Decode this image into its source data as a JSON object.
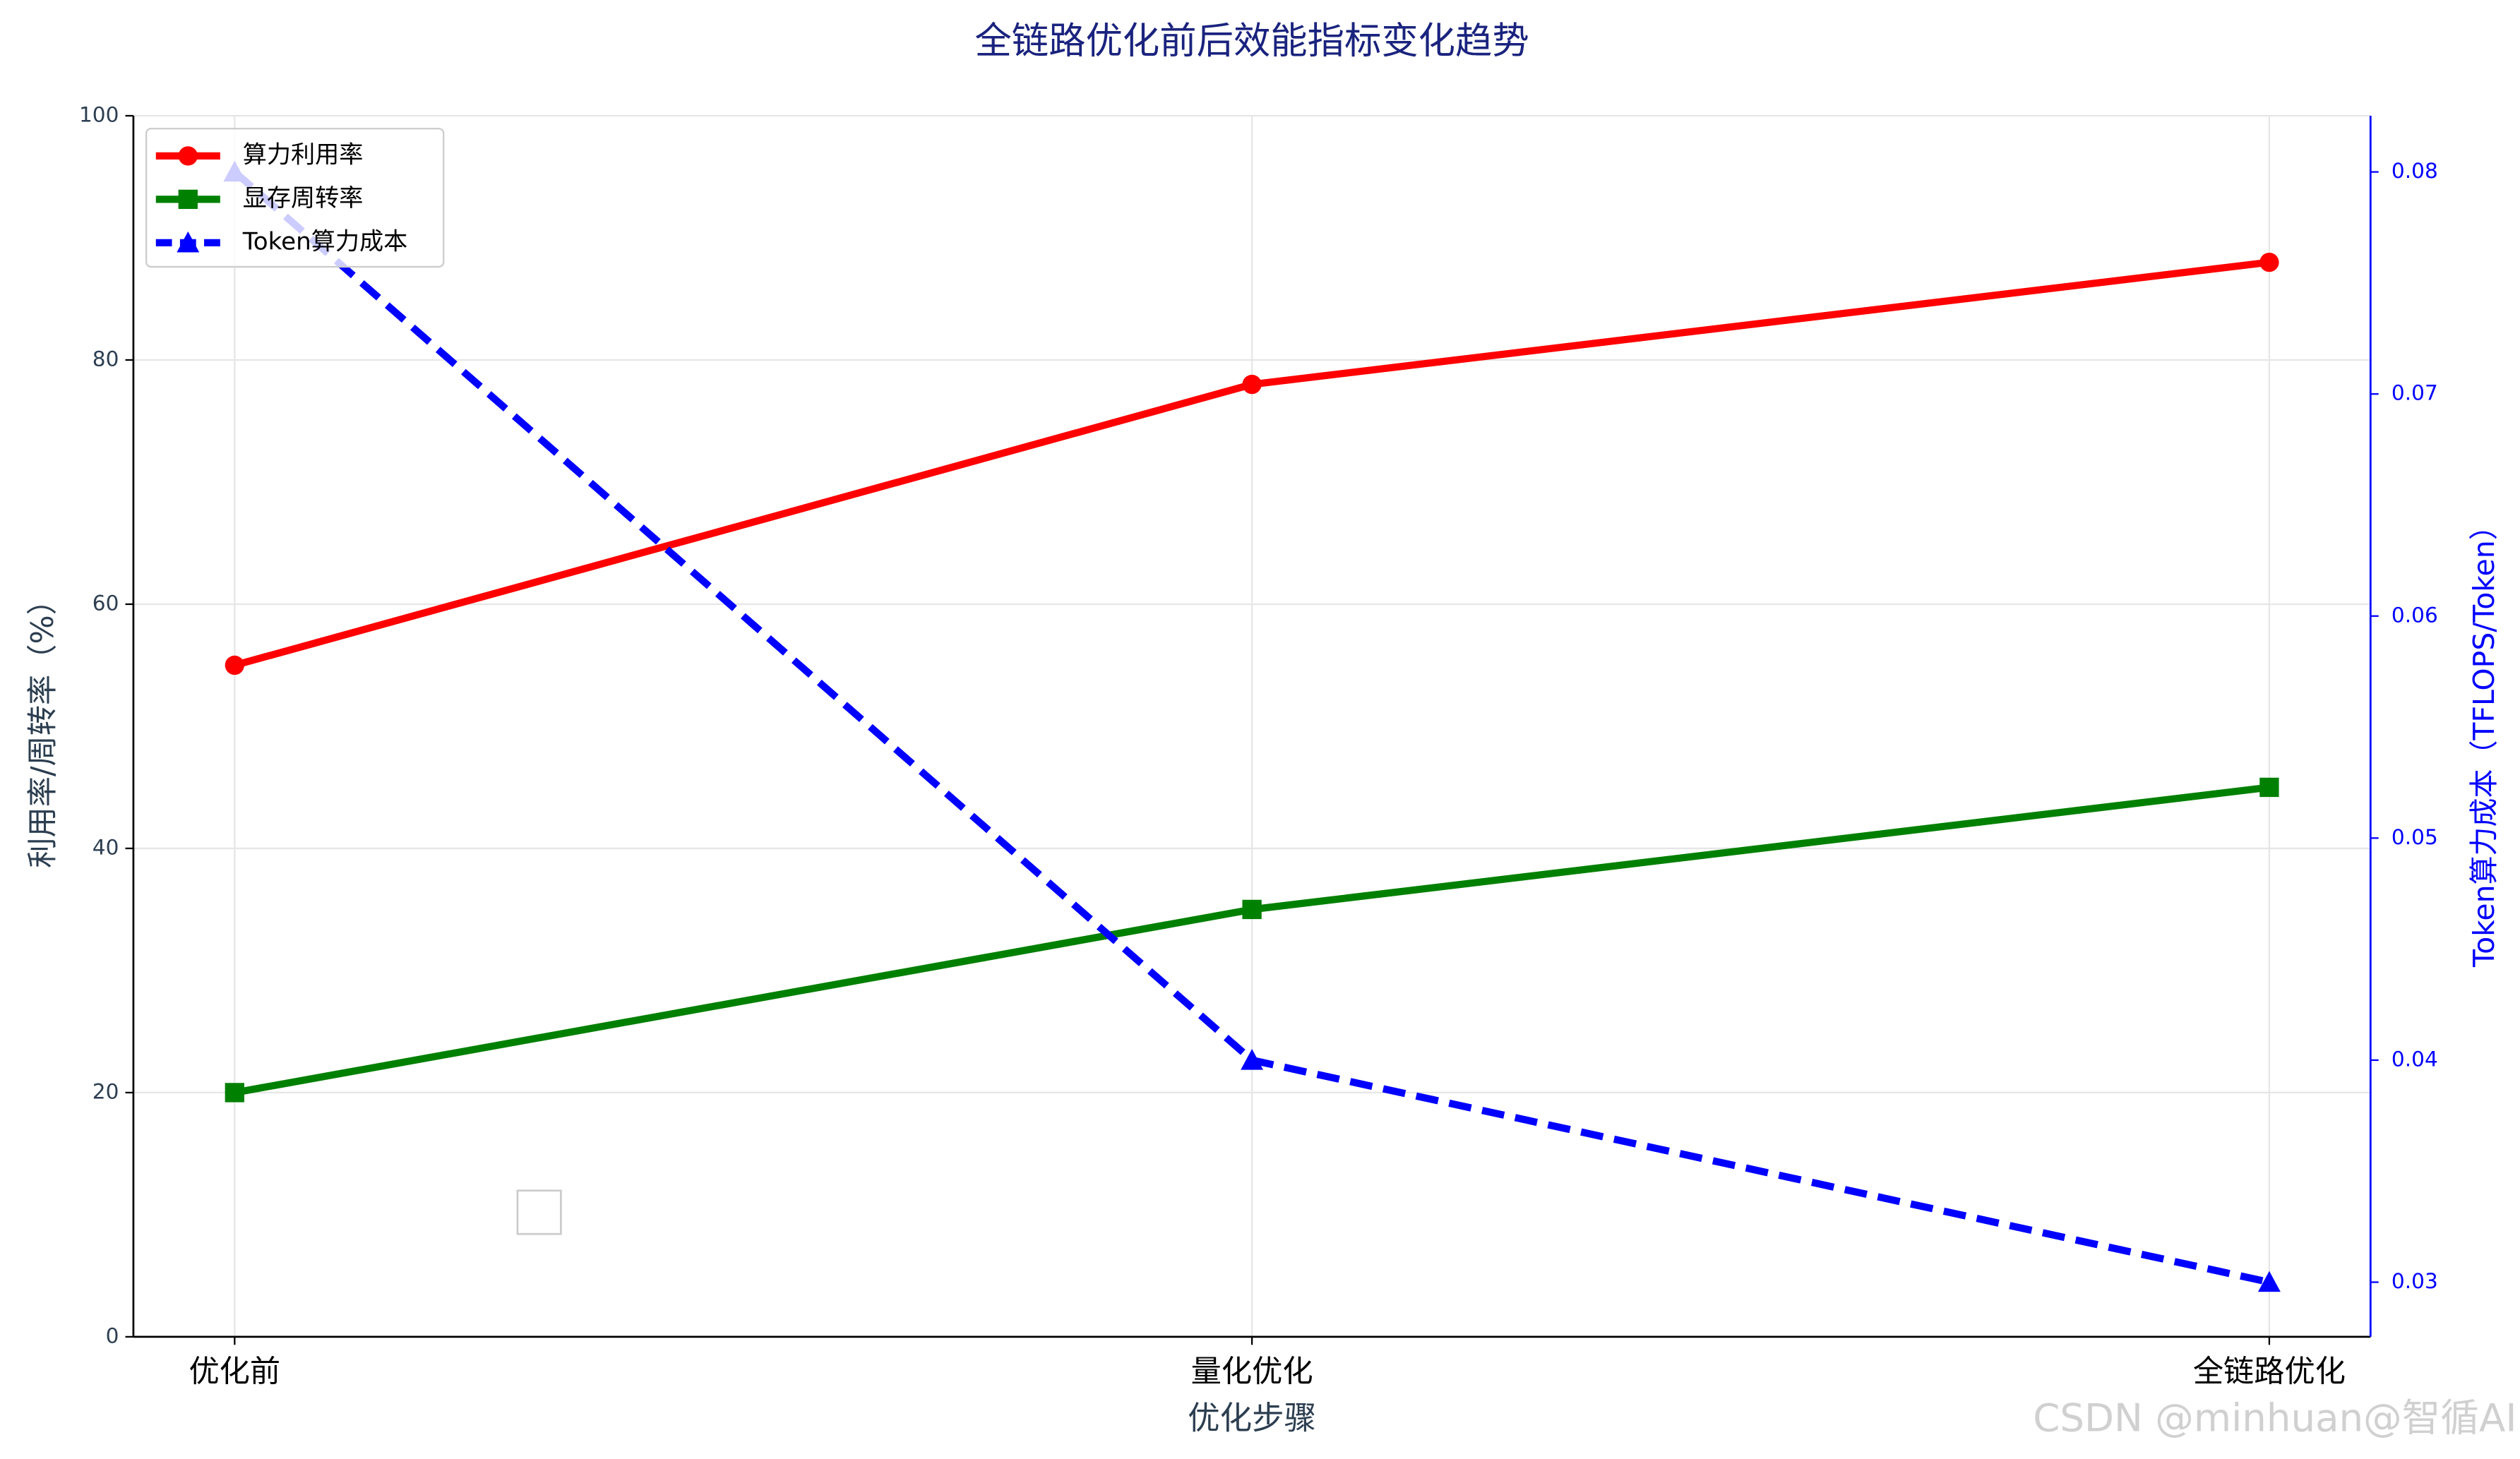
{
  "chart_data": {
    "type": "line",
    "title": "全链路优化前后效能指标变化趋势",
    "xlabel": "优化步骤",
    "ylabel": "利用率/周转率（%）",
    "y2label": "Token算力成本（TFLOPS/Token）",
    "categories": [
      "优化前",
      "量化优化",
      "全链路优化"
    ],
    "series": [
      {
        "name": "算力利用率",
        "color": "#ff0000",
        "marker": "circle",
        "dash": false,
        "values": [
          55,
          78,
          88
        ]
      },
      {
        "name": "显存周转率",
        "color": "#008000",
        "marker": "square",
        "dash": false,
        "values": [
          20,
          35,
          45
        ]
      },
      {
        "name": "Token算力成本",
        "color": "#0000ff",
        "marker": "triangle",
        "dash": true,
        "axis": "y2",
        "values": [
          0.08,
          0.04,
          0.03
        ]
      }
    ],
    "ylim": [
      0,
      100
    ],
    "yticks": [
      0,
      20,
      40,
      60,
      80,
      100
    ],
    "y2lim": [
      0.02754,
      0.08253
    ],
    "y2ticks": [
      0.03,
      0.04,
      0.05,
      0.06,
      0.07,
      0.08
    ],
    "grid": true,
    "legend": "upper left",
    "watermark": "CSDN @minhuan@智循AI"
  }
}
